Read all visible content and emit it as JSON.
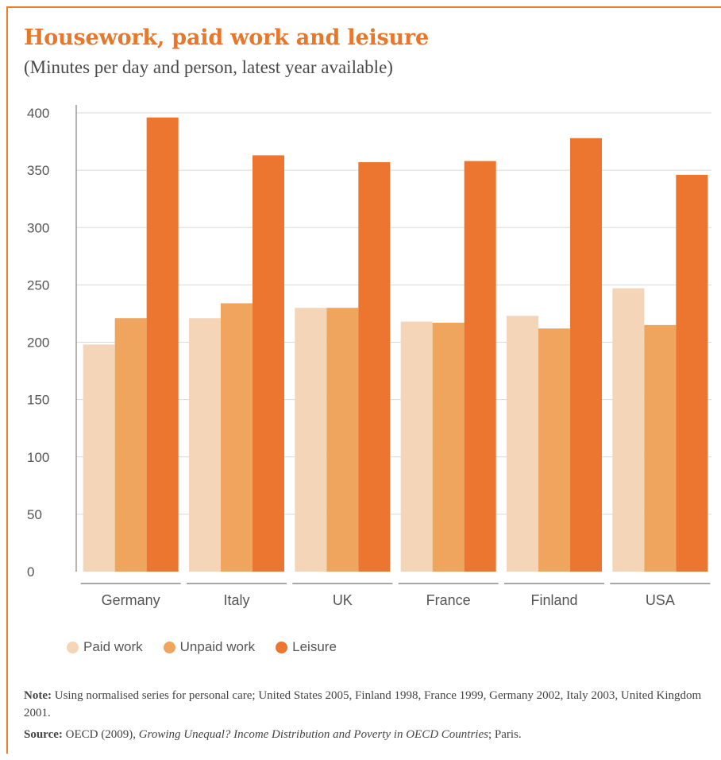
{
  "colors": {
    "frame": "#e87d2e",
    "title": "#e8772a"
  },
  "chart_data": {
    "type": "bar",
    "title": "Housework, paid work and leisure",
    "subtitle": "(Minutes per day and person, latest year available)",
    "categories": [
      "Germany",
      "Italy",
      "UK",
      "France",
      "Finland",
      "USA"
    ],
    "series": [
      {
        "name": "Paid work",
        "color": "#f5d5b8",
        "values": [
          198,
          221,
          230,
          218,
          223,
          247
        ]
      },
      {
        "name": "Unpaid work",
        "color": "#f0a55e",
        "values": [
          221,
          234,
          230,
          217,
          212,
          215
        ]
      },
      {
        "name": "Leisure",
        "color": "#ec7530",
        "values": [
          396,
          363,
          357,
          358,
          378,
          346
        ]
      }
    ],
    "yticks": [
      "0",
      "50",
      "100",
      "150",
      "200",
      "250",
      "300",
      "350",
      "400"
    ],
    "ylim": [
      0,
      400
    ],
    "grid": true,
    "legend_position": "bottom-left"
  },
  "note": {
    "label": "Note:",
    "text": "Using normalised series for personal care; United States 2005, Finland 1998, France 1999, Germany 2002, Italy 2003, United Kingdom 2001."
  },
  "source": {
    "label": "Source:",
    "pre": "OECD (2009),",
    "title": "Growing Unequal? Income Distribution and Poverty in OECD Countries",
    "post": "; Paris."
  }
}
